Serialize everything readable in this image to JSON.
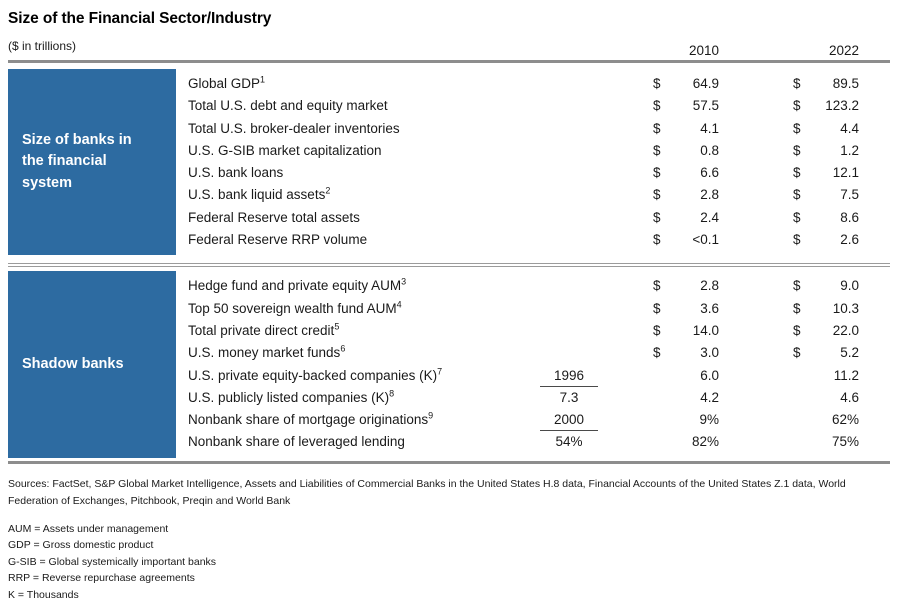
{
  "chart_data": {
    "type": "table",
    "title": "Size of the Financial Sector/Industry",
    "subtitle": "($ in trillions)",
    "year_columns": [
      "2010",
      "2022"
    ],
    "sections": [
      {
        "label": "Size of banks in the financial system",
        "rows": [
          {
            "label": "Global GDP",
            "sup": "1",
            "mid": "",
            "mid_underline": false,
            "dollar_2010": "$",
            "val_2010": "64.9",
            "dollar_2022": "$",
            "val_2022": "89.5"
          },
          {
            "label": "Total U.S. debt and equity market",
            "sup": "",
            "mid": "",
            "mid_underline": false,
            "dollar_2010": "$",
            "val_2010": "57.5",
            "dollar_2022": "$",
            "val_2022": "123.2"
          },
          {
            "label": "Total U.S. broker-dealer inventories",
            "sup": "",
            "mid": "",
            "mid_underline": false,
            "dollar_2010": "$",
            "val_2010": "4.1",
            "dollar_2022": "$",
            "val_2022": "4.4"
          },
          {
            "label": "U.S. G-SIB market capitalization",
            "sup": "",
            "mid": "",
            "mid_underline": false,
            "dollar_2010": "$",
            "val_2010": "0.8",
            "dollar_2022": "$",
            "val_2022": "1.2"
          },
          {
            "label": "U.S. bank loans",
            "sup": "",
            "mid": "",
            "mid_underline": false,
            "dollar_2010": "$",
            "val_2010": "6.6",
            "dollar_2022": "$",
            "val_2022": "12.1"
          },
          {
            "label": "U.S. bank liquid assets",
            "sup": "2",
            "mid": "",
            "mid_underline": false,
            "dollar_2010": "$",
            "val_2010": "2.8",
            "dollar_2022": "$",
            "val_2022": "7.5"
          },
          {
            "label": "Federal Reserve total assets",
            "sup": "",
            "mid": "",
            "mid_underline": false,
            "dollar_2010": "$",
            "val_2010": "2.4",
            "dollar_2022": "$",
            "val_2022": "8.6"
          },
          {
            "label": "Federal Reserve RRP volume",
            "sup": "",
            "mid": "",
            "mid_underline": false,
            "dollar_2010": "$",
            "val_2010": "<0.1",
            "dollar_2022": "$",
            "val_2022": "2.6"
          }
        ]
      },
      {
        "label": "Shadow banks",
        "rows": [
          {
            "label": "Hedge fund and private equity AUM",
            "sup": "3",
            "mid": "",
            "mid_underline": false,
            "dollar_2010": "$",
            "val_2010": "2.8",
            "dollar_2022": "$",
            "val_2022": "9.0"
          },
          {
            "label": "Top 50 sovereign wealth fund AUM",
            "sup": "4",
            "mid": "",
            "mid_underline": false,
            "dollar_2010": "$",
            "val_2010": "3.6",
            "dollar_2022": "$",
            "val_2022": "10.3"
          },
          {
            "label": "Total private direct credit",
            "sup": "5",
            "mid": "",
            "mid_underline": false,
            "dollar_2010": "$",
            "val_2010": "14.0",
            "dollar_2022": "$",
            "val_2022": "22.0"
          },
          {
            "label": "U.S. money market funds",
            "sup": "6",
            "mid": "",
            "mid_underline": false,
            "dollar_2010": "$",
            "val_2010": "3.0",
            "dollar_2022": "$",
            "val_2022": "5.2"
          },
          {
            "label": "U.S. private equity-backed companies (K)",
            "sup": "7",
            "mid": "1996",
            "mid_underline": true,
            "dollar_2010": "",
            "val_2010": "6.0",
            "dollar_2022": "",
            "val_2022": "11.2"
          },
          {
            "label": "U.S. publicly listed companies (K)",
            "sup": "8",
            "mid": "7.3",
            "mid_underline": false,
            "dollar_2010": "",
            "val_2010": "4.2",
            "dollar_2022": "",
            "val_2022": "4.6"
          },
          {
            "label": "Nonbank share of mortgage originations",
            "sup": "9",
            "mid": "2000",
            "mid_underline": true,
            "dollar_2010": "",
            "val_2010": "9%",
            "dollar_2022": "",
            "val_2022": "62%"
          },
          {
            "label": "Nonbank share of leveraged lending",
            "sup": "",
            "mid": "54%",
            "mid_underline": false,
            "dollar_2010": "",
            "val_2010": "82%",
            "dollar_2022": "",
            "val_2022": "75%"
          }
        ]
      }
    ],
    "sources": "Sources: FactSet, S&P Global Market Intelligence, Assets and Liabilities of Commercial Banks in the United States H.8 data, Financial Accounts of the United States Z.1 data, World Federation of Exchanges, Pitchbook, Preqin and World Bank",
    "abbreviations": [
      "AUM = Assets under management",
      "GDP = Gross domestic product",
      "G-SIB = Global systemically important banks",
      "RRP = Reverse repurchase agreements",
      "K = Thousands"
    ],
    "colors": {
      "section_blue": "#2d6ba1",
      "rule_gray": "#8d8d8d",
      "text": "#1a1a1a"
    }
  }
}
